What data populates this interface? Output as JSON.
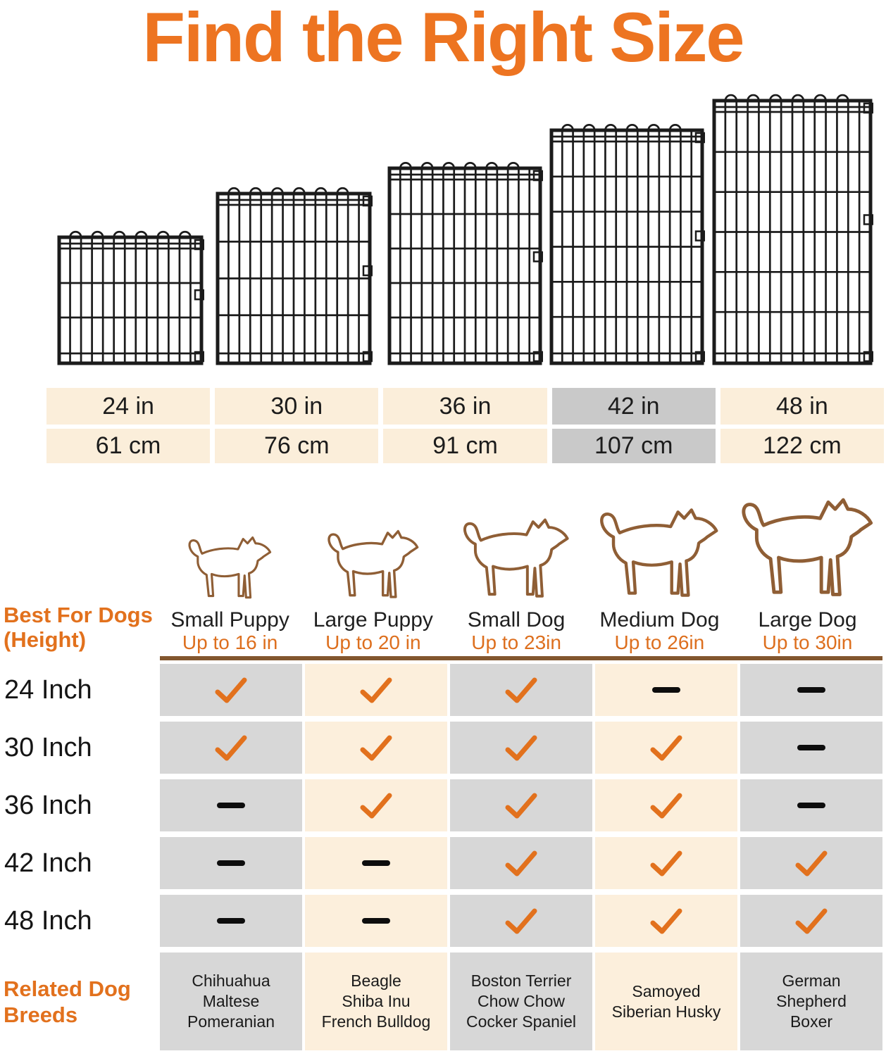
{
  "title": "Find the Right Size",
  "colors": {
    "title_orange": "#ED7421",
    "accent_orange": "#E2711D",
    "cream": "#FBEEDA",
    "matrix_cream": "#FCEFDC",
    "gray": "#D7D7D7",
    "highlight_gray": "#C9C9C9",
    "divider_brown": "#82562E",
    "dog_outline_brown": "#8F5E35",
    "wire_black": "#1b1b1b"
  },
  "panels": [
    {
      "icon": "wire-panel-24in-icon"
    },
    {
      "icon": "wire-panel-30in-icon"
    },
    {
      "icon": "wire-panel-36in-icon"
    },
    {
      "icon": "wire-panel-42in-icon"
    },
    {
      "icon": "wire-panel-48in-icon"
    }
  ],
  "size_table": {
    "inches": [
      "24 in",
      "30 in",
      "36 in",
      "42 in",
      "48 in"
    ],
    "cm": [
      "61 cm",
      "76 cm",
      "91 cm",
      "107 cm",
      "122 cm"
    ],
    "highlighted_index": 3
  },
  "header": {
    "row_label_line1": "Best For Dogs",
    "row_label_line2": "(Height)",
    "columns": [
      {
        "icon": "small-puppy-dog-icon",
        "name": "Small Puppy",
        "height": "Up to 16 in"
      },
      {
        "icon": "large-puppy-dog-icon",
        "name": "Large Puppy",
        "height": "Up to 20 in"
      },
      {
        "icon": "small-dog-icon",
        "name": "Small Dog",
        "height": "Up to 23in"
      },
      {
        "icon": "medium-dog-icon",
        "name": "Medium Dog",
        "height": "Up to 26in"
      },
      {
        "icon": "large-dog-icon",
        "name": "Large Dog",
        "height": "Up to 30in"
      }
    ]
  },
  "matrix": {
    "rows": [
      {
        "label": "24 Inch",
        "cells": [
          "check",
          "check",
          "check",
          "dash",
          "dash"
        ]
      },
      {
        "label": "30 Inch",
        "cells": [
          "check",
          "check",
          "check",
          "check",
          "dash"
        ]
      },
      {
        "label": "36 Inch",
        "cells": [
          "dash",
          "check",
          "check",
          "check",
          "dash"
        ]
      },
      {
        "label": "42 Inch",
        "cells": [
          "dash",
          "dash",
          "check",
          "check",
          "check"
        ]
      },
      {
        "label": "48 Inch",
        "cells": [
          "dash",
          "dash",
          "check",
          "check",
          "check"
        ]
      }
    ]
  },
  "breeds": {
    "label_line1": "Related Dog",
    "label_line2": "Breeds",
    "columns": [
      [
        "Chihuahua",
        "Maltese",
        "Pomeranian"
      ],
      [
        "Beagle",
        "Shiba Inu",
        "French Bulldog"
      ],
      [
        "Boston Terrier",
        "Chow Chow",
        "Cocker Spaniel"
      ],
      [
        "Samoyed",
        "Siberian Husky"
      ],
      [
        "German",
        "Shepherd",
        "Boxer"
      ]
    ]
  },
  "chart_data": [
    {
      "type": "table",
      "title": "Panel width",
      "categories": [
        "24 in",
        "30 in",
        "36 in",
        "42 in",
        "48 in"
      ],
      "rows": [
        [
          "61 cm",
          "76 cm",
          "91 cm",
          "107 cm",
          "122 cm"
        ]
      ],
      "highlighted_column": "42 in"
    },
    {
      "type": "table",
      "title": "Best For Dogs (Height)",
      "categories": [
        "Small Puppy Up to 16 in",
        "Large Puppy Up to 20 in",
        "Small Dog Up to 23in",
        "Medium Dog Up to 26in",
        "Large Dog Up to 30in"
      ],
      "row_labels": [
        "24 Inch",
        "30 Inch",
        "36 Inch",
        "42 Inch",
        "48 Inch",
        "Related Dog Breeds"
      ],
      "rows": [
        [
          "check",
          "check",
          "check",
          "dash",
          "dash"
        ],
        [
          "check",
          "check",
          "check",
          "check",
          "dash"
        ],
        [
          "dash",
          "check",
          "check",
          "check",
          "dash"
        ],
        [
          "dash",
          "dash",
          "check",
          "check",
          "check"
        ],
        [
          "dash",
          "dash",
          "check",
          "check",
          "check"
        ],
        [
          "Chihuahua Maltese Pomeranian",
          "Beagle Shiba Inu French Bulldog",
          "Boston Terrier Chow Chow Cocker Spaniel",
          "Samoyed Siberian Husky",
          "German Shepherd Boxer"
        ]
      ]
    }
  ]
}
